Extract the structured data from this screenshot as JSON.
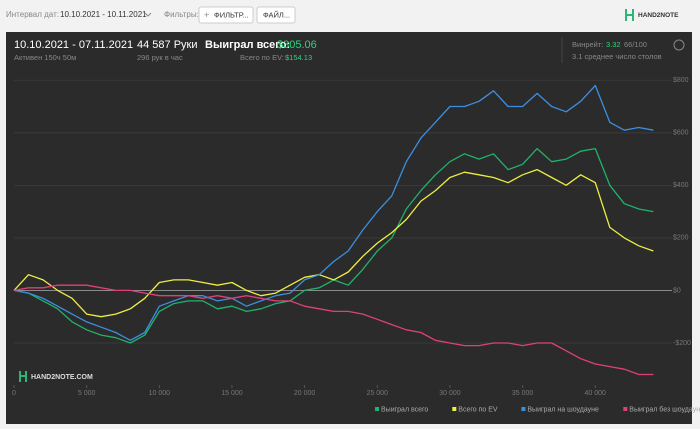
{
  "toolbar": {
    "interval_label": "Интервал дат:",
    "interval": "10.10.2021 - 10.11.2021",
    "filters_label": "Фильтры:",
    "filter_button": "ФИЛЬТР...",
    "file_button": "ФАЙЛ...",
    "logo": "HAND2NOTE"
  },
  "stats": {
    "period": "10.10.2021 - 07.11.2021",
    "active": "Активен 150ч 50м",
    "hands": "44 587 Руки",
    "hands_rate": "296 рук в час",
    "won_label": "Выиграл всего:",
    "won_value": "$305.06",
    "ev_label": "Всего по EV:",
    "ev_value": "$154.13",
    "winrate_label": "Винрейт:",
    "winrate_value": "3.32",
    "winrate_unit": "66/100",
    "tables": "3.1 среднее число столов"
  },
  "watermark": "HAND2NOTE.COM",
  "chart_data": {
    "type": "line",
    "x": [
      0,
      1000,
      2000,
      3000,
      4000,
      5000,
      6000,
      7000,
      8000,
      9000,
      10000,
      11000,
      12000,
      13000,
      14000,
      15000,
      16000,
      17000,
      18000,
      19000,
      20000,
      21000,
      22000,
      23000,
      24000,
      25000,
      26000,
      27000,
      28000,
      29000,
      30000,
      31000,
      32000,
      33000,
      34000,
      35000,
      36000,
      37000,
      38000,
      39000,
      40000,
      41000,
      42000,
      43000,
      44000
    ],
    "series": [
      {
        "name": "Выиграл всего",
        "color": "#21b36b",
        "values": [
          0,
          -10,
          -40,
          -70,
          -120,
          -150,
          -170,
          -180,
          -200,
          -170,
          -80,
          -50,
          -40,
          -40,
          -70,
          -60,
          -80,
          -70,
          -50,
          -40,
          0,
          10,
          40,
          20,
          80,
          150,
          200,
          310,
          380,
          440,
          490,
          520,
          500,
          520,
          460,
          480,
          540,
          490,
          500,
          530,
          540,
          400,
          330,
          310,
          300
        ]
      },
      {
        "name": "Всего по EV",
        "color": "#eeee44",
        "values": [
          0,
          60,
          40,
          0,
          -30,
          -90,
          -100,
          -90,
          -70,
          -30,
          30,
          40,
          40,
          30,
          20,
          30,
          0,
          -20,
          -10,
          20,
          50,
          60,
          40,
          70,
          130,
          180,
          220,
          270,
          340,
          380,
          430,
          450,
          440,
          430,
          410,
          440,
          460,
          430,
          400,
          440,
          410,
          240,
          200,
          170,
          150
        ]
      },
      {
        "name": "Выиграл на шоудауне",
        "color": "#3b8fe0",
        "values": [
          0,
          -10,
          -30,
          -60,
          -90,
          -120,
          -140,
          -160,
          -190,
          -160,
          -60,
          -40,
          -20,
          -20,
          -40,
          -30,
          -60,
          -40,
          -20,
          -10,
          40,
          60,
          110,
          150,
          230,
          300,
          360,
          490,
          580,
          640,
          700,
          700,
          720,
          760,
          700,
          700,
          750,
          700,
          680,
          720,
          780,
          640,
          610,
          620,
          610
        ]
      },
      {
        "name": "Выиграл без шоудауна",
        "color": "#e0407a",
        "values": [
          0,
          10,
          10,
          20,
          20,
          20,
          10,
          0,
          0,
          -10,
          -20,
          -20,
          -20,
          -30,
          -20,
          -30,
          -20,
          -30,
          -40,
          -40,
          -60,
          -70,
          -80,
          -80,
          -90,
          -110,
          -130,
          -150,
          -160,
          -190,
          -200,
          -210,
          -210,
          -200,
          -200,
          -210,
          -200,
          -200,
          -230,
          -260,
          -280,
          -290,
          -300,
          -320,
          -320
        ]
      }
    ],
    "xlim": [
      0,
      44800
    ],
    "ylim": [
      -360,
      820
    ],
    "xticks": [
      0,
      {
        "value": 5000,
        "label": "5 000"
      },
      {
        "value": 10000,
        "label": "10 000"
      },
      {
        "value": 15000,
        "label": "15 000"
      },
      {
        "value": 20000,
        "label": "20 000"
      },
      {
        "value": 25000,
        "label": "25 000"
      },
      {
        "value": 30000,
        "label": "30 000"
      },
      {
        "value": 35000,
        "label": "35 000"
      },
      {
        "value": 40000,
        "label": "40 000"
      }
    ],
    "yticks": [
      {
        "value": -200,
        "label": "-$200"
      },
      {
        "value": 0,
        "label": "$0"
      },
      {
        "value": 200,
        "label": "$200"
      },
      {
        "value": 400,
        "label": "$400"
      },
      {
        "value": 600,
        "label": "$600"
      },
      {
        "value": 800,
        "label": "$800"
      }
    ],
    "grid": true
  }
}
